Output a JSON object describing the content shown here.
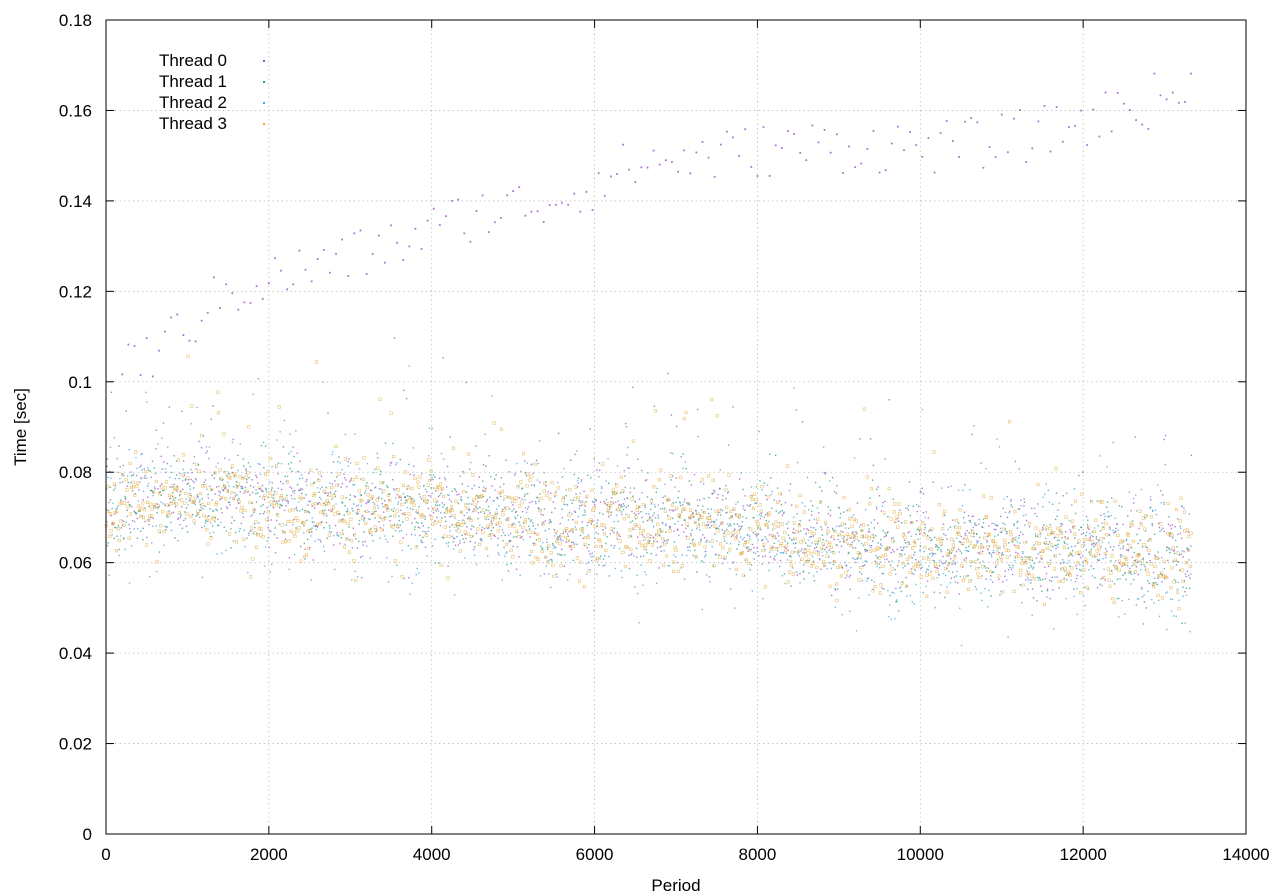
{
  "chart_data": {
    "type": "scatter",
    "title": "",
    "xlabel": "Period",
    "ylabel": "Time [sec]",
    "xlim": [
      0,
      14000
    ],
    "ylim": [
      0,
      0.18
    ],
    "x_ticks": [
      0,
      2000,
      4000,
      6000,
      8000,
      10000,
      12000,
      14000
    ],
    "x_tick_labels": [
      "0",
      "2000",
      "4000",
      "6000",
      "8000",
      "10000",
      "12000",
      "14000"
    ],
    "y_ticks": [
      0,
      0.02,
      0.04,
      0.06,
      0.08,
      0.1,
      0.12,
      0.14,
      0.16,
      0.18
    ],
    "y_tick_labels": [
      "0",
      "0.02",
      "0.04",
      "0.06",
      "0.08",
      "0.1",
      "0.12",
      "0.14",
      "0.16",
      "0.18"
    ],
    "grid": true,
    "legend_position": "top-left",
    "x_range_of_data": [
      0,
      13330
    ],
    "series": [
      {
        "name": "Thread 0",
        "color": "#9b4fc7",
        "marker": "dot",
        "trend_x": [
          0,
          1000,
          2000,
          3000,
          4000,
          5000,
          6000,
          7000,
          8000,
          9000,
          10000,
          11000,
          12000,
          13330
        ],
        "trend_y": [
          0.073,
          0.076,
          0.074,
          0.073,
          0.072,
          0.071,
          0.07,
          0.07,
          0.069,
          0.065,
          0.064,
          0.064,
          0.064,
          0.063
        ],
        "spread": 0.005
      },
      {
        "name": "Thread 1",
        "color": "#2a9a7a",
        "marker": "dot",
        "trend_x": [
          0,
          1000,
          2000,
          3000,
          4000,
          5000,
          6000,
          7000,
          8000,
          9000,
          10000,
          11000,
          12000,
          13330
        ],
        "trend_y": [
          0.072,
          0.075,
          0.074,
          0.072,
          0.072,
          0.07,
          0.069,
          0.069,
          0.068,
          0.064,
          0.063,
          0.063,
          0.063,
          0.062
        ],
        "spread": 0.005
      },
      {
        "name": "Thread 2",
        "color": "#4aa3df",
        "marker": "dot",
        "trend_x": [
          0,
          1000,
          2000,
          3000,
          4000,
          5000,
          6000,
          7000,
          8000,
          9000,
          10000,
          11000,
          12000,
          13330
        ],
        "trend_y": [
          0.071,
          0.074,
          0.073,
          0.071,
          0.071,
          0.069,
          0.068,
          0.068,
          0.067,
          0.063,
          0.062,
          0.062,
          0.062,
          0.061
        ],
        "spread": 0.007
      },
      {
        "name": "Thread 3",
        "color": "#e0a93a",
        "marker": "square",
        "trend_x": [
          0,
          1000,
          2000,
          3000,
          4000,
          5000,
          6000,
          7000,
          8000,
          9000,
          10000,
          11000,
          12000,
          13330
        ],
        "trend_y": [
          0.072,
          0.075,
          0.073,
          0.072,
          0.071,
          0.07,
          0.068,
          0.069,
          0.067,
          0.064,
          0.063,
          0.063,
          0.063,
          0.062
        ],
        "spread": 0.005
      }
    ],
    "outlier_band": {
      "series": "Thread 0",
      "x": [
        500,
        1500,
        2500,
        3500,
        4500,
        5500,
        6500,
        7500,
        8500,
        9500,
        10500,
        11500,
        12500,
        13300
      ],
      "y": [
        0.105,
        0.12,
        0.125,
        0.13,
        0.137,
        0.14,
        0.148,
        0.15,
        0.152,
        0.152,
        0.152,
        0.155,
        0.16,
        0.165
      ]
    }
  }
}
